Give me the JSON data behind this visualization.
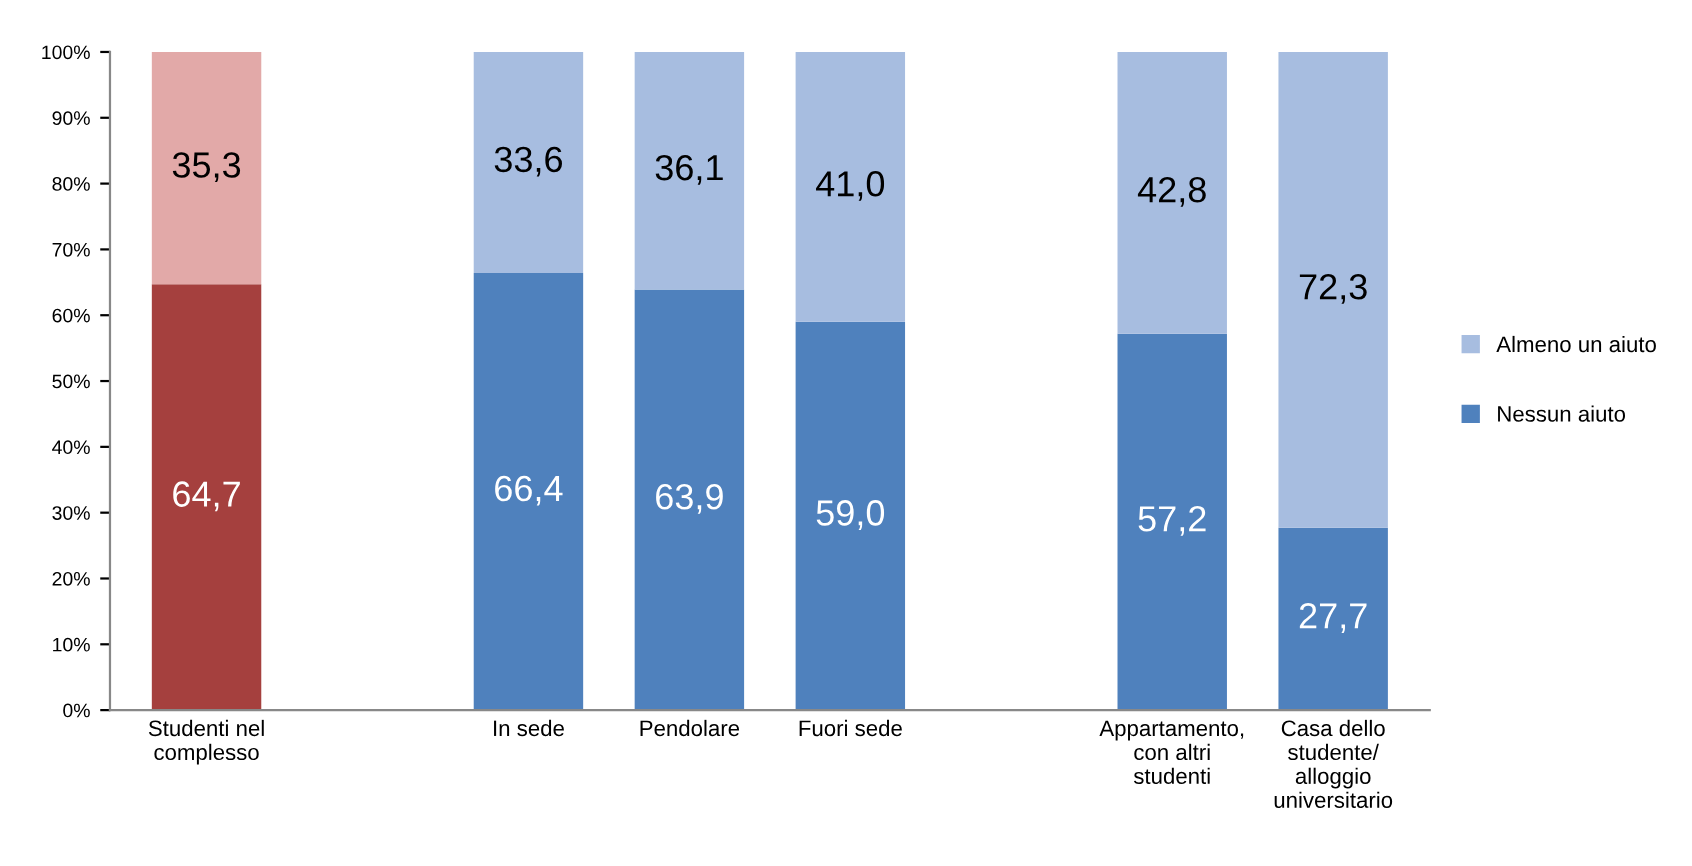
{
  "chart_data": {
    "type": "bar",
    "stacked": true,
    "categories": [
      "Studenti nel\ncomplesso",
      null,
      "In sede",
      "Pendolare",
      "Fuori sede",
      null,
      "Appartamento,\ncon altri\nstudenti",
      "Casa dello\nstudente/\nalloggio\nuniversitario"
    ],
    "series": [
      {
        "name": "Nessun aiuto",
        "color": "#4f81bd",
        "colors": [
          "#a5403e",
          null,
          "#4f81bd",
          "#4f81bd",
          "#4f81bd",
          null,
          "#4f81bd",
          "#4f81bd"
        ],
        "values": [
          64.7,
          null,
          66.4,
          63.9,
          59.0,
          null,
          57.2,
          27.7
        ],
        "value_labels": [
          "64,7",
          null,
          "66,4",
          "63,9",
          "59,0",
          null,
          "57,2",
          "27,7"
        ]
      },
      {
        "name": "Almeno un aiuto",
        "color": "#a7bde0",
        "colors": [
          "#e2a9a8",
          null,
          "#a7bde0",
          "#a7bde0",
          "#a7bde0",
          null,
          "#a7bde0",
          "#a7bde0"
        ],
        "values": [
          35.3,
          null,
          33.6,
          36.1,
          41.0,
          null,
          42.8,
          72.3
        ],
        "value_labels": [
          "35,3",
          null,
          "33,6",
          "36,1",
          "41,0",
          null,
          "42,8",
          "72,3"
        ]
      }
    ],
    "ylim": [
      0,
      100
    ],
    "yticks": [
      {
        "value": 0,
        "label": "0%"
      },
      {
        "value": 10,
        "label": "10%"
      },
      {
        "value": 20,
        "label": "20%"
      },
      {
        "value": 30,
        "label": "30%"
      },
      {
        "value": 40,
        "label": "40%"
      },
      {
        "value": 50,
        "label": "50%"
      },
      {
        "value": 60,
        "label": "60%"
      },
      {
        "value": 70,
        "label": "70%"
      },
      {
        "value": 80,
        "label": "80%"
      },
      {
        "value": 90,
        "label": "90%"
      },
      {
        "value": 100,
        "label": "100%"
      }
    ],
    "grid": false,
    "legend": "right"
  }
}
